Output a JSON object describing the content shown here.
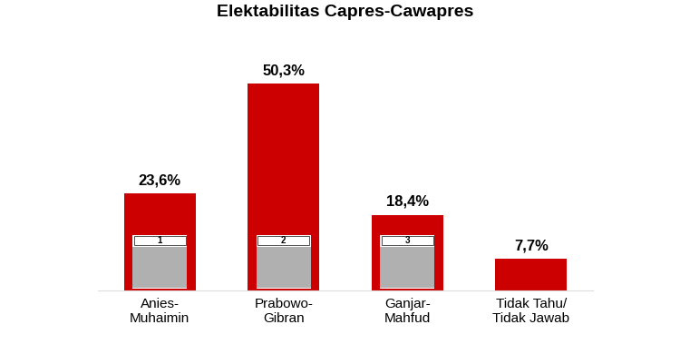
{
  "chart_data": {
    "type": "bar",
    "title": "Elektabilitas Capres-Cawapres",
    "categories": [
      "Anies-\nMuhaimin",
      "Prabowo-\nGibran",
      "Ganjar-\nMahfud",
      "Tidak Tahu/\nTidak Jawab"
    ],
    "values": [
      23.6,
      50.3,
      18.4,
      7.7
    ],
    "value_labels": [
      "23,6%",
      "50,3%",
      "18,4%",
      "7,7%"
    ],
    "ballot_numbers": [
      1,
      2,
      3,
      null
    ],
    "color": "#cc0000",
    "ylim": [
      0,
      55
    ],
    "data_labels": true,
    "tick_labels": "x",
    "grid": false
  }
}
